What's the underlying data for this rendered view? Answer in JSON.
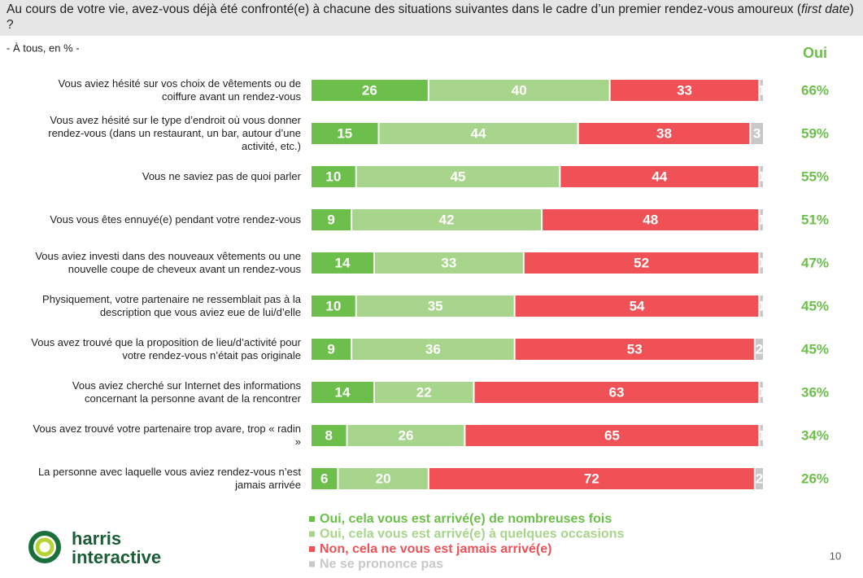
{
  "chart_data": {
    "type": "stacked_bar_horizontal",
    "title": [
      "Au cours de votre vie, avez-vous déjà été confronté(e) à chacune des situations suivantes dans le cadre d’un premier rendez-vous amoureux (",
      "first date",
      ") ?"
    ],
    "subtitle": "- À tous, en % -",
    "categories": [
      "Vous aviez hésité sur vos choix de vêtements ou de coiffure avant un rendez-vous",
      "Vous avez hésité sur le type d’endroit où vous donner rendez-vous (dans un restaurant, un bar, autour d’une activité, etc.)",
      "Vous ne saviez pas de quoi parler",
      "Vous vous êtes ennuyé(e) pendant votre rendez-vous",
      "Vous aviez investi dans des nouveaux vêtements ou une nouvelle coupe de cheveux avant un rendez-vous",
      "Physiquement, votre partenaire ne ressemblait pas à la description que vous aviez eue de lui/d’elle",
      "Vous avez trouvé que la proposition de lieu/d’activité pour votre rendez-vous n’était pas originale",
      "Vous aviez cherché sur Internet des informations concernant la personne avant de la rencontrer",
      "Vous avez trouvé votre partenaire trop avare, trop « radin »",
      "La personne avec laquelle vous aviez rendez-vous n’est jamais arrivée"
    ],
    "series": [
      {
        "name": "Oui, cela vous est arrivé(e) de nombreuses fois",
        "color": "#6cbf4a",
        "values": [
          26,
          15,
          10,
          9,
          14,
          10,
          9,
          14,
          8,
          6
        ]
      },
      {
        "name": "Oui, cela vous est arrivé(e) à quelques occasions",
        "color": "#a8d58c",
        "values": [
          40,
          44,
          45,
          42,
          33,
          35,
          36,
          22,
          26,
          20
        ]
      },
      {
        "name": "Non, cela ne vous est jamais arrivé(e)",
        "color": "#ef5157",
        "values": [
          33,
          38,
          44,
          48,
          52,
          54,
          53,
          63,
          65,
          72
        ]
      },
      {
        "name": "Ne se prononce pas",
        "color": "#c8c8c8",
        "values": [
          1,
          3,
          1,
          1,
          1,
          1,
          2,
          1,
          1,
          2
        ]
      }
    ],
    "xlim": [
      0,
      100
    ],
    "totals": {
      "name": "Oui",
      "color": "#6cbf4a",
      "values": [
        66,
        59,
        55,
        51,
        47,
        45,
        45,
        36,
        34,
        26
      ],
      "value_labels": [
        "66%",
        "59%",
        "55%",
        "51%",
        "47%",
        "45%",
        "45%",
        "36%",
        "34%",
        "26%"
      ]
    }
  },
  "logo": [
    "harris",
    "interactive"
  ],
  "page_number": "10"
}
